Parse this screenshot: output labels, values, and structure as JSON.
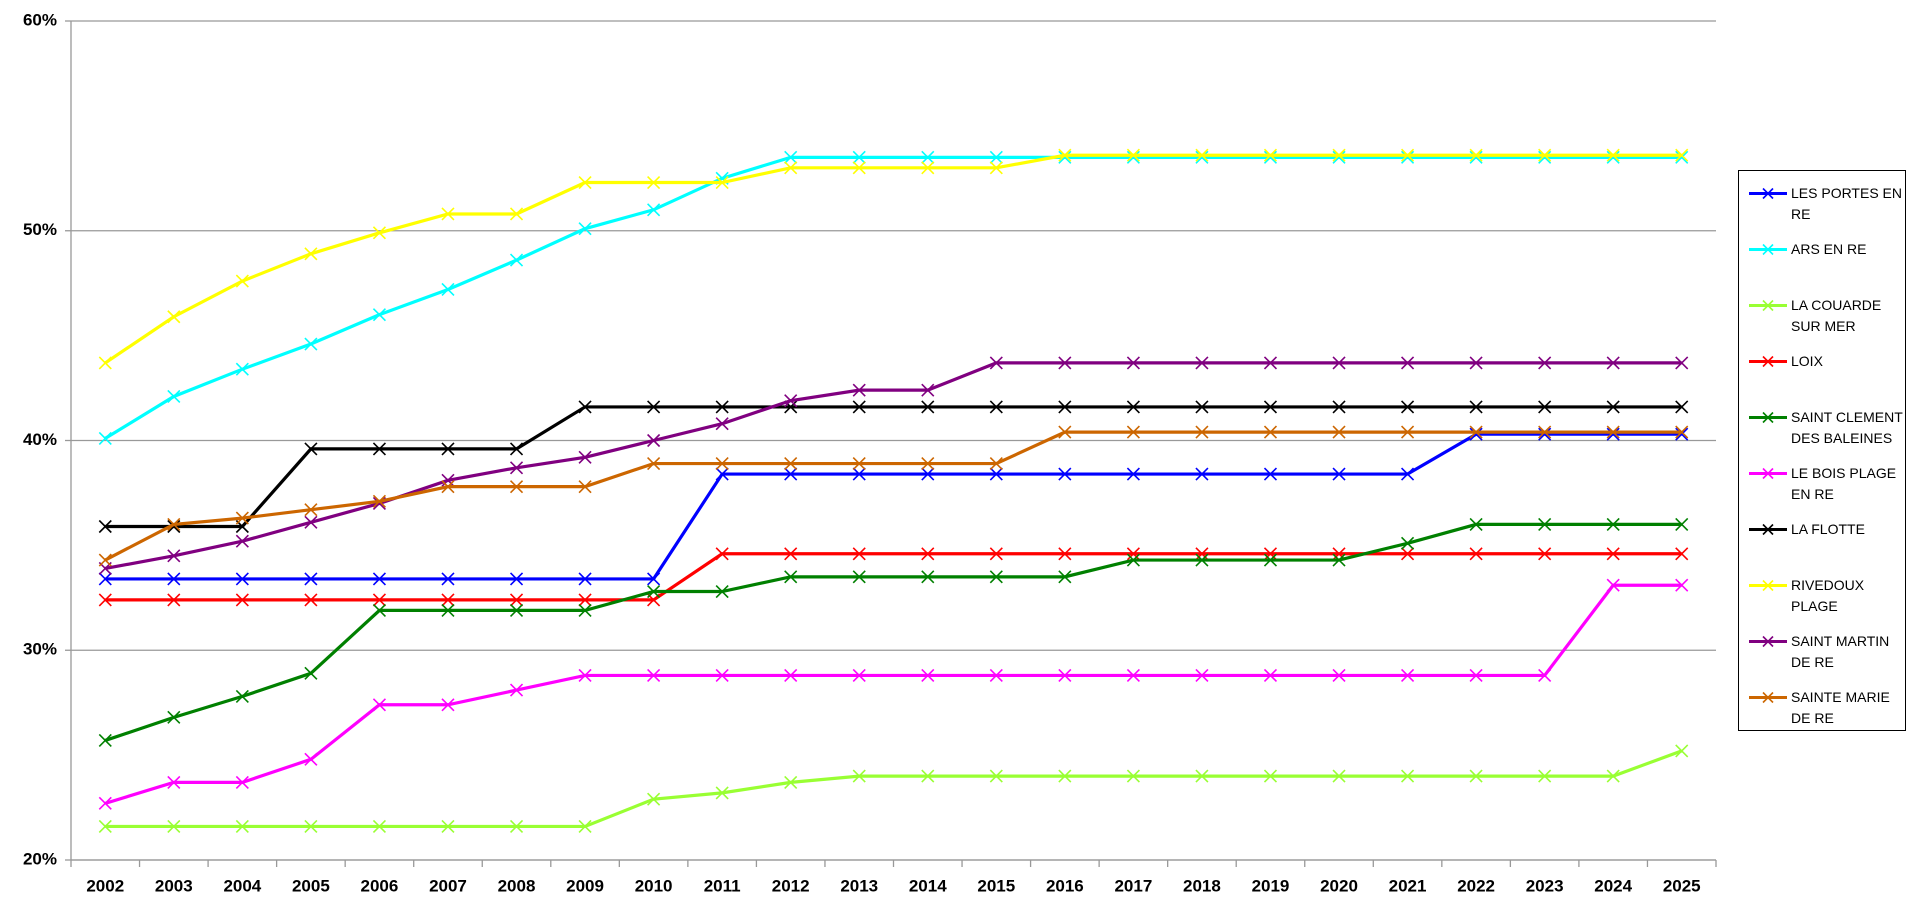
{
  "chart_data": {
    "type": "line",
    "categories": [
      "2002",
      "2003",
      "2004",
      "2005",
      "2006",
      "2007",
      "2008",
      "2009",
      "2010",
      "2011",
      "2012",
      "2013",
      "2014",
      "2015",
      "2016",
      "2017",
      "2018",
      "2019",
      "2020",
      "2021",
      "2022",
      "2023",
      "2024",
      "2025"
    ],
    "ylim": [
      20,
      60
    ],
    "yticks": [
      {
        "value": 20,
        "label": "20%"
      },
      {
        "value": 30,
        "label": "30%"
      },
      {
        "value": 40,
        "label": "40%"
      },
      {
        "value": 50,
        "label": "50%"
      },
      {
        "value": 60,
        "label": "60%"
      }
    ],
    "grid": true,
    "legend": "right",
    "series": [
      {
        "name": "LES PORTES EN RE",
        "color": "#0000ff",
        "values": [
          33.4,
          33.4,
          33.4,
          33.4,
          33.4,
          33.4,
          33.4,
          33.4,
          33.4,
          38.4,
          38.4,
          38.4,
          38.4,
          38.4,
          38.4,
          38.4,
          38.4,
          38.4,
          38.4,
          38.4,
          40.3,
          40.3,
          40.3,
          40.3
        ]
      },
      {
        "name": "ARS EN RE",
        "color": "#00ffff",
        "values": [
          40.1,
          42.1,
          43.4,
          44.6,
          46.0,
          47.2,
          48.6,
          50.1,
          51.0,
          52.5,
          53.5,
          53.5,
          53.5,
          53.5,
          53.5,
          53.5,
          53.5,
          53.5,
          53.5,
          53.5,
          53.5,
          53.5,
          53.5,
          53.5
        ]
      },
      {
        "name": "LA COUARDE SUR MER",
        "color": "#99ff33",
        "values": [
          21.6,
          21.6,
          21.6,
          21.6,
          21.6,
          21.6,
          21.6,
          21.6,
          22.9,
          23.2,
          23.7,
          24.0,
          24.0,
          24.0,
          24.0,
          24.0,
          24.0,
          24.0,
          24.0,
          24.0,
          24.0,
          24.0,
          24.0,
          25.2
        ]
      },
      {
        "name": "LOIX",
        "color": "#ff0000",
        "values": [
          32.4,
          32.4,
          32.4,
          32.4,
          32.4,
          32.4,
          32.4,
          32.4,
          32.4,
          34.6,
          34.6,
          34.6,
          34.6,
          34.6,
          34.6,
          34.6,
          34.6,
          34.6,
          34.6,
          34.6,
          34.6,
          34.6,
          34.6,
          34.6
        ]
      },
      {
        "name": "SAINT CLEMENT DES BALEINES",
        "color": "#008000",
        "values": [
          25.7,
          26.8,
          27.8,
          28.9,
          31.9,
          31.9,
          31.9,
          31.9,
          32.8,
          32.8,
          33.5,
          33.5,
          33.5,
          33.5,
          33.5,
          34.3,
          34.3,
          34.3,
          34.3,
          35.1,
          36.0,
          36.0,
          36.0,
          36.0
        ]
      },
      {
        "name": "LE BOIS PLAGE EN RE",
        "color": "#ff00ff",
        "values": [
          22.7,
          23.7,
          23.7,
          24.8,
          27.4,
          27.4,
          28.1,
          28.8,
          28.8,
          28.8,
          28.8,
          28.8,
          28.8,
          28.8,
          28.8,
          28.8,
          28.8,
          28.8,
          28.8,
          28.8,
          28.8,
          28.8,
          33.1,
          33.1
        ]
      },
      {
        "name": "LA FLOTTE",
        "color": "#000000",
        "values": [
          35.9,
          35.9,
          35.9,
          39.6,
          39.6,
          39.6,
          39.6,
          41.6,
          41.6,
          41.6,
          41.6,
          41.6,
          41.6,
          41.6,
          41.6,
          41.6,
          41.6,
          41.6,
          41.6,
          41.6,
          41.6,
          41.6,
          41.6,
          41.6
        ]
      },
      {
        "name": "RIVEDOUX PLAGE",
        "color": "#ffff00",
        "values": [
          43.7,
          45.9,
          47.6,
          48.9,
          49.9,
          50.8,
          50.8,
          52.3,
          52.3,
          52.3,
          53.0,
          53.0,
          53.0,
          53.0,
          53.6,
          53.6,
          53.6,
          53.6,
          53.6,
          53.6,
          53.6,
          53.6,
          53.6,
          53.6
        ]
      },
      {
        "name": "SAINT MARTIN DE RE",
        "color": "#800080",
        "values": [
          33.9,
          34.5,
          35.2,
          36.1,
          37.0,
          38.1,
          38.7,
          39.2,
          40.0,
          40.8,
          41.9,
          42.4,
          42.4,
          43.7,
          43.7,
          43.7,
          43.7,
          43.7,
          43.7,
          43.7,
          43.7,
          43.7,
          43.7,
          43.7
        ]
      },
      {
        "name": "SAINTE MARIE DE RE",
        "color": "#cc6600",
        "values": [
          34.3,
          36.0,
          36.3,
          36.7,
          37.1,
          37.8,
          37.8,
          37.8,
          38.9,
          38.9,
          38.9,
          38.9,
          38.9,
          38.9,
          40.4,
          40.4,
          40.4,
          40.4,
          40.4,
          40.4,
          40.4,
          40.4,
          40.4,
          40.4
        ]
      }
    ]
  }
}
